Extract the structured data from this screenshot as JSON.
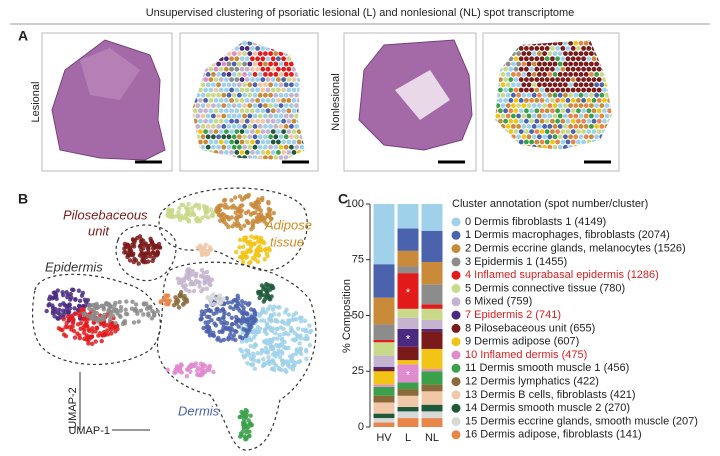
{
  "title": "Unsupervised clustering of psoriatic lesional (L)  and nonlesional (NL) spot transcriptome",
  "panel_a": {
    "label": "A",
    "lesional": "Lesional",
    "nonlesional": "Nonlesional"
  },
  "panel_b": {
    "label": "B",
    "pilosebaceous": [
      "Pilosebaceous",
      "unit"
    ],
    "adipose": [
      "Adipose",
      "tissue"
    ],
    "epidermis": "Epidermis",
    "dermis": "Dermis",
    "umap_2": "UMAP-2",
    "umap_1": "UMAP-1"
  },
  "chart_data": {
    "type": "stacked_bar",
    "label": "C",
    "ylabel": "% Composition",
    "legend_title": "Cluster annotation (spot number/cluster)",
    "categories": [
      "HV",
      "L",
      "NL"
    ],
    "ylim": [
      0,
      100
    ],
    "yticks": [
      0,
      25,
      50,
      75,
      100
    ],
    "series": [
      {
        "name": "0 Dermis fibroblasts 1 (4149)",
        "color": "#9fd1ea",
        "values": [
          27,
          11,
          12
        ]
      },
      {
        "name": "1 Dermis macrophages, fibroblasts (2074)",
        "color": "#4b62ad",
        "values": [
          15,
          10,
          14
        ]
      },
      {
        "name": "2 Dermis eccrine glands, melanocytes (1526)",
        "color": "#c98a3a",
        "values": [
          12,
          7,
          10
        ]
      },
      {
        "name": "3 Epidermis 1 (1455)",
        "color": "#8c8c8c",
        "values": [
          7,
          3,
          9
        ]
      },
      {
        "name": "4 Inflamed suprabasal epidermis (1286)",
        "color": "#e31a1c",
        "values": [
          1,
          16,
          2
        ],
        "highlighted": true,
        "annotations": [
          null,
          "*",
          null
        ]
      },
      {
        "name": "5 Dermis connective tissue (780)",
        "color": "#c8d98a",
        "values": [
          6,
          4,
          5
        ]
      },
      {
        "name": "6 Mixed (759)",
        "color": "#c4b4cf",
        "values": [
          5,
          5,
          4
        ]
      },
      {
        "name": "7 Epidermis 2 (741)",
        "color": "#4a2a80",
        "values": [
          1,
          8,
          1
        ],
        "highlighted": true,
        "annotations": [
          null,
          "*",
          null
        ]
      },
      {
        "name": "8 Pilosebaceous unit (655)",
        "color": "#7a1a1a",
        "values": [
          1,
          6,
          8
        ]
      },
      {
        "name": "9 Dermis adipose (607)",
        "color": "#f2c418",
        "values": [
          6,
          2,
          9
        ]
      },
      {
        "name": "10 Inflamed dermis (475)",
        "color": "#e08ad0",
        "values": [
          1,
          8,
          1
        ],
        "highlighted": true,
        "annotations": [
          null,
          "*",
          null
        ]
      },
      {
        "name": "11 Dermis smooth muscle 1 (456)",
        "color": "#3aa04a",
        "values": [
          4,
          3,
          6
        ]
      },
      {
        "name": "12 Dermis lymphatics (422)",
        "color": "#8a6a3a",
        "values": [
          3,
          3,
          3
        ]
      },
      {
        "name": "13 Dermis B cells, fibroblasts (421)",
        "color": "#f0c8a8",
        "values": [
          5,
          5,
          6
        ]
      },
      {
        "name": "14 Dermis smooth muscle 2 (270)",
        "color": "#1e5a3a",
        "values": [
          2,
          2,
          3
        ]
      },
      {
        "name": "15 Dermis eccrine glands, smooth muscle (207)",
        "color": "#d8d8d8",
        "values": [
          2,
          3,
          3
        ]
      },
      {
        "name": "16 Dermis adipose, fibroblasts (141)",
        "color": "#e8864a",
        "values": [
          2,
          4,
          4
        ]
      }
    ],
    "highlight_color": "#d62020"
  }
}
